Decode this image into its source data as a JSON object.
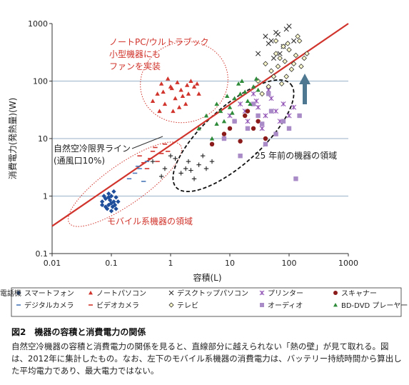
{
  "chart_data": {
    "type": "scatter",
    "xscale": "log",
    "yscale": "log",
    "xlim": [
      0.01,
      1000
    ],
    "ylim": [
      0.1,
      1000
    ],
    "xlabel": "容積(L)",
    "ylabel": "消費電力(発熱量)(W)",
    "x_ticks": [
      "0.01",
      "0.1",
      "1",
      "10",
      "100",
      "1000"
    ],
    "y_ticks": [
      "0.1",
      "1",
      "10",
      "100",
      "1000"
    ],
    "reference_line": {
      "label": "自然空冷限界ライン\n(通風口10%)",
      "points": [
        [
          0.01,
          0.3
        ],
        [
          1000,
          1000
        ]
      ],
      "color": "#d0342c"
    },
    "annotations": [
      {
        "text": "ノートPC/ウルトラブック\n小型機器にも\nファンを実装",
        "color": "#d0342c"
      },
      {
        "text": "モバイル系機器の領域",
        "color": "#d0342c"
      },
      {
        "text": "25 年前の機器の領域",
        "color": "#222222"
      }
    ],
    "series": [
      {
        "name": "スマートフォン",
        "marker": "diamond",
        "color": "#1f4e9b",
        "points": [
          [
            0.07,
            0.8
          ],
          [
            0.08,
            0.9
          ],
          [
            0.09,
            0.7
          ],
          [
            0.1,
            1.0
          ],
          [
            0.11,
            0.8
          ],
          [
            0.12,
            0.6
          ],
          [
            0.09,
            1.1
          ],
          [
            0.08,
            0.65
          ],
          [
            0.1,
            0.75
          ],
          [
            0.12,
            0.95
          ],
          [
            0.07,
            0.7
          ],
          [
            0.095,
            0.85
          ],
          [
            0.11,
            1.2
          ],
          [
            0.085,
            0.6
          ],
          [
            0.13,
            0.8
          ],
          [
            0.1,
            0.55
          ],
          [
            0.075,
            1.0
          ],
          [
            0.115,
            0.7
          ],
          [
            0.09,
            0.95
          ],
          [
            0.105,
            0.65
          ]
        ]
      },
      {
        "name": "ノートパソコン",
        "marker": "triangle",
        "color": "#d0342c",
        "points": [
          [
            0.6,
            60
          ],
          [
            0.8,
            40
          ],
          [
            1.0,
            80
          ],
          [
            1.2,
            50
          ],
          [
            1.5,
            70
          ],
          [
            0.7,
            90
          ],
          [
            2.0,
            60
          ],
          [
            1.1,
            30
          ],
          [
            0.9,
            110
          ],
          [
            1.8,
            40
          ],
          [
            2.5,
            80
          ],
          [
            1.3,
            95
          ],
          [
            0.5,
            45
          ],
          [
            3.0,
            60
          ],
          [
            2.2,
            100
          ],
          [
            1.6,
            55
          ],
          [
            0.75,
            65
          ],
          [
            1.4,
            35
          ],
          [
            2.8,
            90
          ],
          [
            1.05,
            75
          ],
          [
            0.65,
            30
          ],
          [
            1.9,
            85
          ]
        ]
      },
      {
        "name": "デスクトップパソコン",
        "marker": "x",
        "color": "#333333",
        "points": [
          [
            30,
            300
          ],
          [
            50,
            500
          ],
          [
            60,
            700
          ],
          [
            80,
            400
          ],
          [
            100,
            900
          ],
          [
            40,
            600
          ],
          [
            70,
            300
          ],
          [
            90,
            800
          ],
          [
            55,
            250
          ],
          [
            120,
            500
          ],
          [
            45,
            450
          ],
          [
            65,
            650
          ]
        ]
      },
      {
        "name": "プリンター",
        "marker": "star",
        "color": "#8e4fb3",
        "points": [
          [
            10,
            25
          ],
          [
            15,
            40
          ],
          [
            20,
            20
          ],
          [
            25,
            60
          ],
          [
            30,
            35
          ],
          [
            40,
            25
          ],
          [
            50,
            50
          ],
          [
            60,
            30
          ],
          [
            80,
            40
          ],
          [
            100,
            25
          ],
          [
            35,
            15
          ],
          [
            45,
            70
          ],
          [
            70,
            20
          ],
          [
            120,
            35
          ],
          [
            18,
            30
          ],
          [
            28,
            45
          ]
        ]
      },
      {
        "name": "スキャナー",
        "marker": "circle",
        "color": "#8b1a1a",
        "points": [
          [
            5,
            8
          ],
          [
            8,
            12
          ],
          [
            12,
            20
          ],
          [
            15,
            9
          ],
          [
            20,
            30
          ],
          [
            25,
            15
          ],
          [
            30,
            20
          ],
          [
            18,
            25
          ],
          [
            40,
            10
          ],
          [
            10,
            15
          ]
        ]
      },
      {
        "name": "電話機",
        "marker": "plus",
        "color": "#222222",
        "points": [
          [
            0.5,
            4
          ],
          [
            0.8,
            3
          ],
          [
            1.0,
            5
          ],
          [
            1.5,
            2.5
          ],
          [
            2.0,
            4
          ],
          [
            3.0,
            3.5
          ],
          [
            2.5,
            2
          ],
          [
            1.2,
            4.5
          ],
          [
            4.0,
            3
          ],
          [
            0.7,
            2.2
          ],
          [
            3.5,
            5
          ],
          [
            1.8,
            3
          ],
          [
            2.2,
            2.8
          ],
          [
            5.0,
            4
          ]
        ]
      },
      {
        "name": "デジタルカメラ",
        "marker": "dash",
        "color": "#4a78b8",
        "points": [
          [
            0.2,
            2
          ],
          [
            0.3,
            3
          ],
          [
            0.25,
            2.5
          ],
          [
            0.4,
            4
          ],
          [
            0.35,
            1.8
          ],
          [
            0.28,
            3.3
          ]
        ]
      },
      {
        "name": "ビデオカメラ",
        "marker": "dash",
        "color": "#d0342c",
        "points": [
          [
            0.3,
            5
          ],
          [
            0.5,
            6
          ],
          [
            0.6,
            4
          ],
          [
            0.8,
            8
          ],
          [
            0.4,
            3
          ],
          [
            0.7,
            5.5
          ],
          [
            0.55,
            7
          ],
          [
            0.45,
            4.5
          ],
          [
            0.9,
            6
          ],
          [
            0.35,
            3.8
          ]
        ]
      },
      {
        "name": "テレビ",
        "marker": "diamond-open",
        "color": "#c9b400",
        "points": [
          [
            30,
            100
          ],
          [
            40,
            200
          ],
          [
            50,
            150
          ],
          [
            60,
            300
          ],
          [
            70,
            250
          ],
          [
            80,
            400
          ],
          [
            90,
            120
          ],
          [
            100,
            350
          ],
          [
            120,
            200
          ],
          [
            150,
            500
          ],
          [
            200,
            300
          ],
          [
            45,
            80
          ],
          [
            55,
            120
          ],
          [
            65,
            180
          ],
          [
            75,
            90
          ],
          [
            85,
            220
          ],
          [
            110,
            160
          ],
          [
            130,
            280
          ],
          [
            160,
            180
          ],
          [
            35,
            60
          ],
          [
            95,
            450
          ],
          [
            140,
            600
          ],
          [
            180,
            250
          ],
          [
            60,
            500
          ]
        ]
      },
      {
        "name": "オーディオ",
        "marker": "square",
        "color": "#a98bc7",
        "points": [
          [
            8,
            10
          ],
          [
            12,
            20
          ],
          [
            20,
            15
          ],
          [
            30,
            25
          ],
          [
            40,
            8
          ],
          [
            50,
            30
          ],
          [
            60,
            12
          ],
          [
            80,
            20
          ],
          [
            100,
            15
          ],
          [
            15,
            5
          ],
          [
            25,
            40
          ],
          [
            35,
            18
          ],
          [
            150,
            25
          ],
          [
            45,
            60
          ],
          [
            130,
            2
          ]
        ]
      },
      {
        "name": "BD-DVD プレーヤー",
        "marker": "triangle",
        "color": "#2e8b3a",
        "points": [
          [
            3,
            15
          ],
          [
            4,
            25
          ],
          [
            5,
            10
          ],
          [
            6,
            40
          ],
          [
            8,
            20
          ],
          [
            10,
            35
          ],
          [
            12,
            50
          ],
          [
            15,
            60
          ],
          [
            20,
            45
          ],
          [
            25,
            80
          ],
          [
            30,
            70
          ],
          [
            7,
            30
          ],
          [
            9,
            55
          ],
          [
            11,
            28
          ],
          [
            14,
            90
          ],
          [
            18,
            65
          ],
          [
            22,
            40
          ],
          [
            6,
            18
          ],
          [
            16,
            100
          ],
          [
            28,
            110
          ]
        ]
      }
    ]
  },
  "legend": [
    {
      "label": "スマートフォン",
      "marker": "diamond",
      "color": "#1f4e9b"
    },
    {
      "label": "ノートパソコン",
      "marker": "triangle",
      "color": "#d0342c"
    },
    {
      "label": "デスクトップパソコン",
      "marker": "x",
      "color": "#333333"
    },
    {
      "label": "プリンター",
      "marker": "star",
      "color": "#8e4fb3"
    },
    {
      "label": "スキャナー",
      "marker": "circle",
      "color": "#8b1a1a"
    },
    {
      "label": "電話機",
      "marker": "plus",
      "color": "#222222"
    },
    {
      "label": "デジタルカメラ",
      "marker": "dash",
      "color": "#4a78b8"
    },
    {
      "label": "ビデオカメラ",
      "marker": "dash",
      "color": "#d0342c"
    },
    {
      "label": "テレビ",
      "marker": "diamond-open",
      "color": "#c9b400"
    },
    {
      "label": "オーディオ",
      "marker": "square",
      "color": "#a98bc7"
    },
    {
      "label": "BD-DVD プレーヤー",
      "marker": "triangle",
      "color": "#2e8b3a"
    }
  ],
  "caption": {
    "title": "図2　機器の容積と消費電力の関係",
    "body": "自然空冷機器の容積と消費電力の関係を見ると、直線部分に越えられない「熱の壁」が見て取れる。図は、2012年に集計したもの。なお、左下のモバイル系機器の消費電力は、バッテリー持続時間から算出した平均電力であり、最大電力ではない。"
  },
  "colors": {
    "accent_red": "#d0342c",
    "grid": "#9ab3c9",
    "arrow": "#4e7891"
  }
}
